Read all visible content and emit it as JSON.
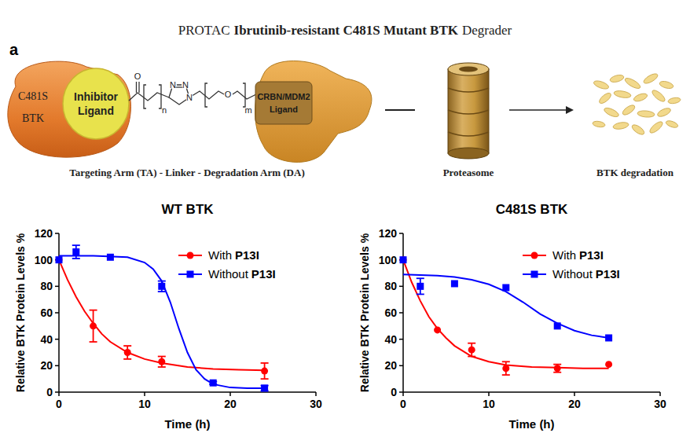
{
  "figure_title": [
    {
      "text": "PROTAC",
      "bold": false
    },
    {
      "text": "Ibrutinib-resistant C481S Mutant BTK",
      "bold": true
    },
    {
      "text": "Degrader",
      "bold": false
    }
  ],
  "diagram": {
    "panel_label": "a",
    "target_protein": [
      "C481S",
      "BTK"
    ],
    "inhibitor": [
      "Inhibitor",
      "Ligand"
    ],
    "linker_atoms": {
      "carbonyl_o": "O",
      "n": "n",
      "triazole_n": [
        "N",
        "N",
        "N"
      ],
      "ether_o": "O",
      "m": "m"
    },
    "e3_ligand": [
      "CRBN/MDM2",
      "Ligand"
    ],
    "caption": "Targeting Arm (TA) - Linker - Degradation Arm (DA)",
    "proteasome": "Proteasome",
    "result": "BTK degradation"
  },
  "chart_data": [
    {
      "type": "scatter",
      "title": "WT BTK",
      "x_label": "Time (h)",
      "y_label": "Relative BTK Protein Levels %",
      "xlim": [
        0,
        30
      ],
      "ylim": [
        0,
        120
      ],
      "xticks": [
        0,
        10,
        20,
        30
      ],
      "yticks": [
        0,
        20,
        40,
        60,
        80,
        100,
        120
      ],
      "legend": "upper right",
      "series": [
        {
          "name": "With P13I",
          "color": "#ff0000",
          "marker": "circle",
          "line_style": "solid",
          "x": [
            0,
            4,
            8,
            12,
            24
          ],
          "values": [
            100,
            50,
            30,
            23,
            16
          ],
          "errors": [
            null,
            12,
            5,
            4,
            6
          ],
          "fit_x": [
            0,
            1,
            2,
            3,
            4,
            5,
            6,
            8,
            10,
            12,
            15,
            18,
            21,
            24
          ],
          "fit_values": [
            100,
            85,
            72,
            61,
            52,
            44,
            38,
            30,
            25,
            22,
            19,
            17.5,
            17,
            16.5
          ]
        },
        {
          "name": "Without P13I",
          "color": "#0000ff",
          "marker": "square",
          "line_style": "solid",
          "x": [
            0,
            2,
            6,
            12,
            18,
            24
          ],
          "values": [
            100,
            106,
            102,
            80,
            7,
            3
          ],
          "errors": [
            null,
            5,
            null,
            4,
            1,
            2
          ],
          "fit_x": [
            0,
            4,
            8,
            10,
            11,
            12,
            13,
            14,
            15,
            16,
            17,
            18,
            20,
            22,
            24
          ],
          "fit_values": [
            103,
            103,
            102,
            98,
            93,
            84,
            68,
            48,
            30,
            17,
            10,
            6,
            3.5,
            3,
            3
          ]
        }
      ]
    },
    {
      "type": "scatter",
      "title": "C481S BTK",
      "x_label": "Time (h)",
      "y_label": "Relative BTK Protein Levels %",
      "xlim": [
        0,
        30
      ],
      "ylim": [
        0,
        120
      ],
      "xticks": [
        0,
        10,
        20,
        30
      ],
      "yticks": [
        0,
        20,
        40,
        60,
        80,
        100,
        120
      ],
      "legend": "upper right",
      "series": [
        {
          "name": "With P13I",
          "color": "#ff0000",
          "marker": "circle",
          "line_style": "solid",
          "x": [
            0,
            4,
            8,
            12,
            18,
            24
          ],
          "values": [
            100,
            47,
            32,
            18,
            18,
            21
          ],
          "errors": [
            null,
            null,
            5,
            5,
            3,
            null
          ],
          "fit_x": [
            0,
            1,
            2,
            3,
            4,
            5,
            6,
            8,
            10,
            12,
            15,
            18,
            21,
            24
          ],
          "fit_values": [
            100,
            83,
            69,
            57,
            48,
            41,
            35,
            27,
            23,
            20.5,
            19,
            18.5,
            18,
            18
          ]
        },
        {
          "name": "Without P13I",
          "color": "#0000ff",
          "marker": "square",
          "line_style": "solid",
          "x": [
            0,
            2,
            6,
            12,
            18,
            24
          ],
          "values": [
            100,
            80,
            82,
            79,
            50,
            41
          ],
          "errors": [
            null,
            6,
            null,
            null,
            null,
            null
          ],
          "fit_x": [
            0,
            2,
            4,
            6,
            8,
            10,
            12,
            14,
            16,
            18,
            20,
            22,
            24
          ],
          "fit_values": [
            89,
            88.5,
            88,
            87,
            85,
            81.5,
            76,
            68,
            59,
            52,
            46.5,
            43,
            41
          ]
        }
      ]
    }
  ]
}
